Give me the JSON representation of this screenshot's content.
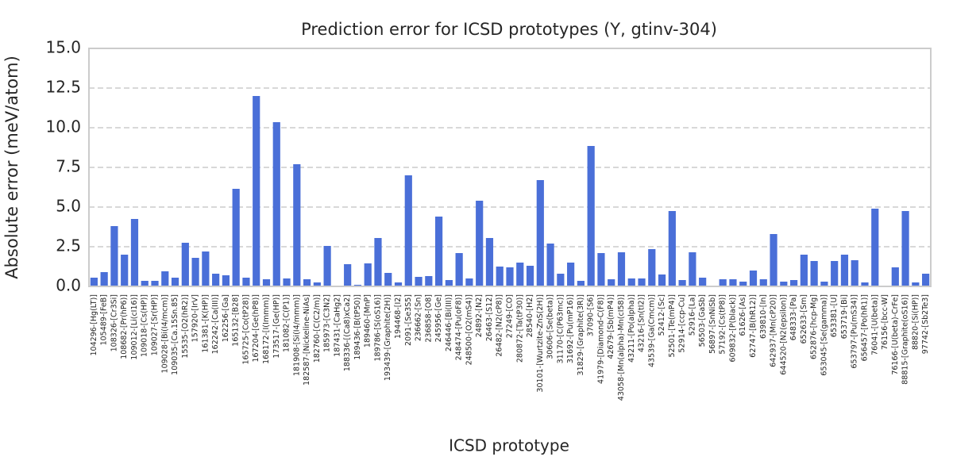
{
  "chart_data": {
    "type": "bar",
    "title": "Prediction error for ICSD prototypes (Y, gtinv-304)",
    "x_label": "ICSD prototype",
    "y_label": "Absolute error (meV/atom)",
    "color": "#4a6fd8",
    "grid": true,
    "ylim": [
      0,
      15
    ],
    "yticks": [
      {
        "value": 0,
        "label": "0.0"
      },
      2.5,
      {
        "value": 5,
        "label": "5.0"
      },
      7.5,
      {
        "value": 10,
        "label": "10.0"
      },
      12.5,
      {
        "value": 15,
        "label": "15.0"
      }
    ],
    "categories": [
      "104296-[Hg(LT)]",
      "105489-[FeB]",
      "108326-[Cr3Si]",
      "108682-[Pr(hP6)]",
      "109012-[Li(cI16)]",
      "109018-[Cs(HP)]",
      "109027-[Sr(HP)]",
      "109028-[Bi(I4/mcm)]",
      "109035-[Ca.15Sn.85]",
      "15535-[O2(hR2)]",
      "157920-[IrV]",
      "161381-[K(HP)]",
      "162242-[Ca(III)]",
      "162256-[Ga]",
      "165132-[B28]",
      "165725-[Co(tP28)]",
      "167204-[Ge(hP8)]",
      "168172-[I(Immm)]",
      "173517-[Ge(HP)]",
      "181082-[C(P1)]",
      "181908-[Si(I4/mmm)]",
      "182587-[Nickeline-NiAs]",
      "182760-[C(C2/m)]",
      "185973-[C3N2]",
      "187431-[CaHg2]",
      "188336-[(Ca8)xCa2]",
      "189436-[B(tP50)]",
      "189460-[MnP]",
      "189786-[S(oS16)]",
      "193439-[Graphite(2H)]",
      "194468-[I2]",
      "2091-[Se3S5]",
      "236662-[Sn]",
      "236858-[O8]",
      "245956-[Ge]",
      "246446-[Bi(III)]",
      "248474-[Pu(oF8)]",
      "248500-[O2(mS4)]",
      "24892-[N2]",
      "26463-[S12]",
      "26482-[N2(cP8)]",
      "27249-[CO]",
      "280872-[Ta(tP30)]",
      "28540-[H2]",
      "30101-[Wurtzite-ZnS(2H)]",
      "30606-[Se(beta)]",
      "31170-[C(P63mc)]",
      "31692-[Pu(mP16)]",
      "31829-[Graphite(3R)]",
      "37090-[S6]",
      "41979-[Diamond-C(F8)]",
      "42679-[Sb(mP4)]",
      "43058-[Mn(alpha)-Mn(cI58)]",
      "43211-[Po(alpha)]",
      "43216-[Sn(tI2)]",
      "43539-[Ga(Cmcm)]",
      "52412-[Sc]",
      "52501-[Te(mP4)]",
      "52914-[ccp-Cu]",
      "52916-[La]",
      "56503-[GaSb]",
      "56897-[SnNiSb]",
      "57192-[Cs(tP8)]",
      "609832-[P(black)]",
      "61626-[As]",
      "62747-[B(hR12)]",
      "639810-[In]",
      "642937-[Mn(cP20)]",
      "644520-[N2(epsilon)]",
      "648333-[Pa]",
      "652633-[Sm]",
      "652876-[hcp-Mg]",
      "653045-[Se(gamma)]",
      "653381-[U]",
      "653719-[Bi]",
      "653797-[Pu(mS34)]",
      "656457-[Po(hR1)]",
      "76041-[U(beta)]",
      "76156-[bcc-W]",
      "76166-[U(beta)-CrFe]",
      "88815-[Graphite(oS16)]",
      "88820-[Si(HP)]",
      "97742-[Sb2Te3]"
    ],
    "values": [
      0.55,
      0.9,
      3.8,
      2.0,
      4.25,
      0.35,
      0.35,
      0.95,
      0.55,
      2.75,
      1.8,
      2.2,
      0.8,
      0.7,
      6.15,
      0.55,
      12.0,
      0.45,
      10.35,
      0.5,
      7.7,
      0.45,
      0.25,
      2.55,
      0.05,
      1.4,
      0.1,
      1.45,
      3.05,
      0.85,
      0.25,
      7.0,
      0.6,
      0.65,
      4.4,
      0.4,
      2.1,
      0.5,
      5.4,
      3.05,
      1.25,
      1.2,
      1.5,
      1.3,
      6.7,
      2.7,
      0.8,
      1.5,
      0.35,
      8.85,
      2.1,
      0.45,
      2.15,
      0.5,
      0.5,
      2.35,
      0.75,
      4.75,
      0.4,
      2.15,
      0.55,
      0.05,
      0.45,
      0.45,
      0.3,
      1.0,
      0.45,
      3.3,
      0.3,
      0.4,
      2.0,
      1.6,
      0.3,
      1.6,
      2.0,
      1.65,
      0.25,
      4.9,
      0.02,
      1.2,
      4.75,
      0.25,
      0.8
    ]
  }
}
